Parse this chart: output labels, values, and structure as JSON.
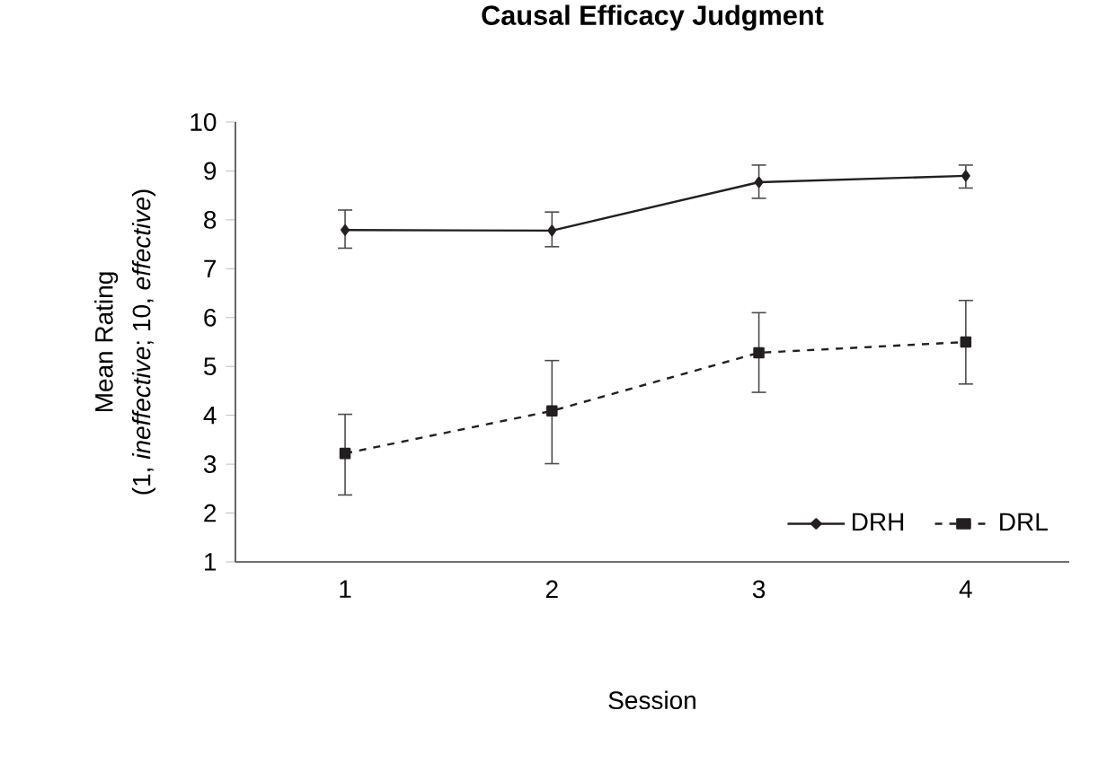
{
  "chart_data": {
    "type": "line",
    "title": "Causal Efficacy Judgment",
    "xlabel": "Session",
    "ylabel": "Mean Rating",
    "annotations": [
      "(1, *ineffective*; 10, *effective*)"
    ],
    "categories": [
      "1",
      "2",
      "3",
      "4"
    ],
    "ylim": [
      1,
      10
    ],
    "yticks": [
      1,
      2,
      3,
      4,
      5,
      6,
      7,
      8,
      9,
      10
    ],
    "legend": "bottom right",
    "grid": false,
    "series": [
      {
        "name": "DRH",
        "color": "#231f20",
        "marker": "diamond",
        "line_style": "solid",
        "values": [
          7.79,
          7.78,
          8.77,
          8.9
        ],
        "errors": [
          [
            7.42,
            8.2
          ],
          [
            7.45,
            8.16
          ],
          [
            8.44,
            9.12
          ],
          [
            8.65,
            9.12
          ]
        ]
      },
      {
        "name": "DRL",
        "color": "#231f20",
        "marker": "square",
        "line_style": "dashed",
        "values": [
          3.22,
          4.09,
          5.28,
          5.5
        ],
        "errors": [
          [
            2.37,
            4.02
          ],
          [
            3.01,
            5.12
          ],
          [
            4.47,
            6.1
          ],
          [
            4.64,
            6.35
          ]
        ]
      }
    ]
  }
}
